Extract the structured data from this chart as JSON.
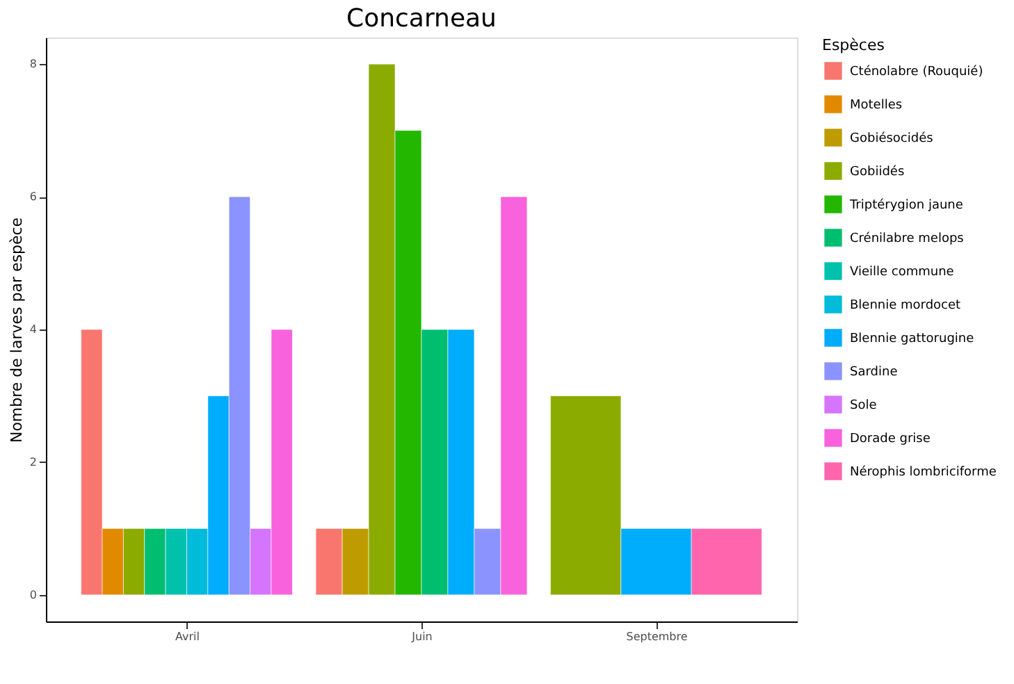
{
  "chart_data": {
    "type": "bar",
    "title": "Concarneau",
    "ylabel": "Nombre de larves par espèce",
    "legend_title": "Espèces",
    "categories": [
      "Avril",
      "Juin",
      "Septembre"
    ],
    "series": [
      {
        "name": "Cténolabre (Rouquié)",
        "color": "#f8766d",
        "values": [
          4,
          1,
          null
        ]
      },
      {
        "name": "Motelles",
        "color": "#e18a00",
        "values": [
          1,
          null,
          null
        ]
      },
      {
        "name": "Gobiésocidés",
        "color": "#be9c00",
        "values": [
          null,
          1,
          null
        ]
      },
      {
        "name": "Gobiidés",
        "color": "#8cab00",
        "values": [
          1,
          8,
          3
        ]
      },
      {
        "name": "Triptérygion jaune",
        "color": "#24b700",
        "values": [
          null,
          7,
          null
        ]
      },
      {
        "name": "Crénilabre melops",
        "color": "#00be70",
        "values": [
          1,
          4,
          null
        ]
      },
      {
        "name": "Vieille commune",
        "color": "#00c1ab",
        "values": [
          1,
          null,
          null
        ]
      },
      {
        "name": "Blennie mordocet",
        "color": "#00bbda",
        "values": [
          1,
          null,
          null
        ]
      },
      {
        "name": "Blennie gattorugine",
        "color": "#00acfc",
        "values": [
          3,
          4,
          1
        ]
      },
      {
        "name": "Sardine",
        "color": "#8b93ff",
        "values": [
          6,
          1,
          null
        ]
      },
      {
        "name": "Sole",
        "color": "#d575fe",
        "values": [
          1,
          null,
          null
        ]
      },
      {
        "name": "Dorade grise",
        "color": "#f962dd",
        "values": [
          4,
          6,
          null
        ]
      },
      {
        "name": "Nérophis lombriciforme",
        "color": "#ff65ac",
        "values": [
          null,
          null,
          1
        ]
      }
    ],
    "ylim": [
      -0.4,
      8.4
    ],
    "yticks": [
      0,
      2,
      4,
      6,
      8
    ],
    "grid": false,
    "legend": "right"
  }
}
